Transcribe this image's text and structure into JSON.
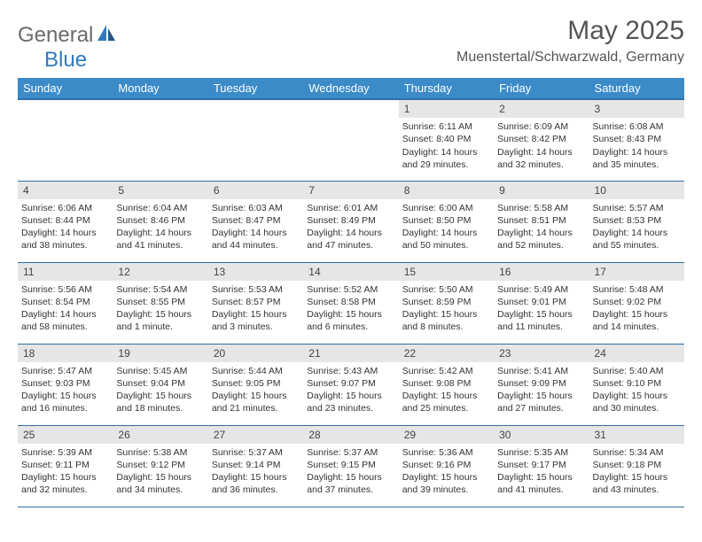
{
  "logo": {
    "part1": "General",
    "part2": "Blue"
  },
  "title": "May 2025",
  "location": "Muenstertal/Schwarzwald, Germany",
  "colors": {
    "header_bg": "#3b8bc9",
    "header_border": "#2f6fa3",
    "daynum_bg": "#e6e6e6",
    "logo_gray": "#6b6b6b",
    "logo_blue": "#2f7abf"
  },
  "weekdays": [
    "Sunday",
    "Monday",
    "Tuesday",
    "Wednesday",
    "Thursday",
    "Friday",
    "Saturday"
  ],
  "weeks": [
    [
      null,
      null,
      null,
      null,
      {
        "n": "1",
        "sr": "6:11 AM",
        "ss": "8:40 PM",
        "dl": "14 hours and 29 minutes."
      },
      {
        "n": "2",
        "sr": "6:09 AM",
        "ss": "8:42 PM",
        "dl": "14 hours and 32 minutes."
      },
      {
        "n": "3",
        "sr": "6:08 AM",
        "ss": "8:43 PM",
        "dl": "14 hours and 35 minutes."
      }
    ],
    [
      {
        "n": "4",
        "sr": "6:06 AM",
        "ss": "8:44 PM",
        "dl": "14 hours and 38 minutes."
      },
      {
        "n": "5",
        "sr": "6:04 AM",
        "ss": "8:46 PM",
        "dl": "14 hours and 41 minutes."
      },
      {
        "n": "6",
        "sr": "6:03 AM",
        "ss": "8:47 PM",
        "dl": "14 hours and 44 minutes."
      },
      {
        "n": "7",
        "sr": "6:01 AM",
        "ss": "8:49 PM",
        "dl": "14 hours and 47 minutes."
      },
      {
        "n": "8",
        "sr": "6:00 AM",
        "ss": "8:50 PM",
        "dl": "14 hours and 50 minutes."
      },
      {
        "n": "9",
        "sr": "5:58 AM",
        "ss": "8:51 PM",
        "dl": "14 hours and 52 minutes."
      },
      {
        "n": "10",
        "sr": "5:57 AM",
        "ss": "8:53 PM",
        "dl": "14 hours and 55 minutes."
      }
    ],
    [
      {
        "n": "11",
        "sr": "5:56 AM",
        "ss": "8:54 PM",
        "dl": "14 hours and 58 minutes."
      },
      {
        "n": "12",
        "sr": "5:54 AM",
        "ss": "8:55 PM",
        "dl": "15 hours and 1 minute."
      },
      {
        "n": "13",
        "sr": "5:53 AM",
        "ss": "8:57 PM",
        "dl": "15 hours and 3 minutes."
      },
      {
        "n": "14",
        "sr": "5:52 AM",
        "ss": "8:58 PM",
        "dl": "15 hours and 6 minutes."
      },
      {
        "n": "15",
        "sr": "5:50 AM",
        "ss": "8:59 PM",
        "dl": "15 hours and 8 minutes."
      },
      {
        "n": "16",
        "sr": "5:49 AM",
        "ss": "9:01 PM",
        "dl": "15 hours and 11 minutes."
      },
      {
        "n": "17",
        "sr": "5:48 AM",
        "ss": "9:02 PM",
        "dl": "15 hours and 14 minutes."
      }
    ],
    [
      {
        "n": "18",
        "sr": "5:47 AM",
        "ss": "9:03 PM",
        "dl": "15 hours and 16 minutes."
      },
      {
        "n": "19",
        "sr": "5:45 AM",
        "ss": "9:04 PM",
        "dl": "15 hours and 18 minutes."
      },
      {
        "n": "20",
        "sr": "5:44 AM",
        "ss": "9:05 PM",
        "dl": "15 hours and 21 minutes."
      },
      {
        "n": "21",
        "sr": "5:43 AM",
        "ss": "9:07 PM",
        "dl": "15 hours and 23 minutes."
      },
      {
        "n": "22",
        "sr": "5:42 AM",
        "ss": "9:08 PM",
        "dl": "15 hours and 25 minutes."
      },
      {
        "n": "23",
        "sr": "5:41 AM",
        "ss": "9:09 PM",
        "dl": "15 hours and 27 minutes."
      },
      {
        "n": "24",
        "sr": "5:40 AM",
        "ss": "9:10 PM",
        "dl": "15 hours and 30 minutes."
      }
    ],
    [
      {
        "n": "25",
        "sr": "5:39 AM",
        "ss": "9:11 PM",
        "dl": "15 hours and 32 minutes."
      },
      {
        "n": "26",
        "sr": "5:38 AM",
        "ss": "9:12 PM",
        "dl": "15 hours and 34 minutes."
      },
      {
        "n": "27",
        "sr": "5:37 AM",
        "ss": "9:14 PM",
        "dl": "15 hours and 36 minutes."
      },
      {
        "n": "28",
        "sr": "5:37 AM",
        "ss": "9:15 PM",
        "dl": "15 hours and 37 minutes."
      },
      {
        "n": "29",
        "sr": "5:36 AM",
        "ss": "9:16 PM",
        "dl": "15 hours and 39 minutes."
      },
      {
        "n": "30",
        "sr": "5:35 AM",
        "ss": "9:17 PM",
        "dl": "15 hours and 41 minutes."
      },
      {
        "n": "31",
        "sr": "5:34 AM",
        "ss": "9:18 PM",
        "dl": "15 hours and 43 minutes."
      }
    ]
  ],
  "labels": {
    "sunrise": "Sunrise:",
    "sunset": "Sunset:",
    "daylight": "Daylight:"
  }
}
